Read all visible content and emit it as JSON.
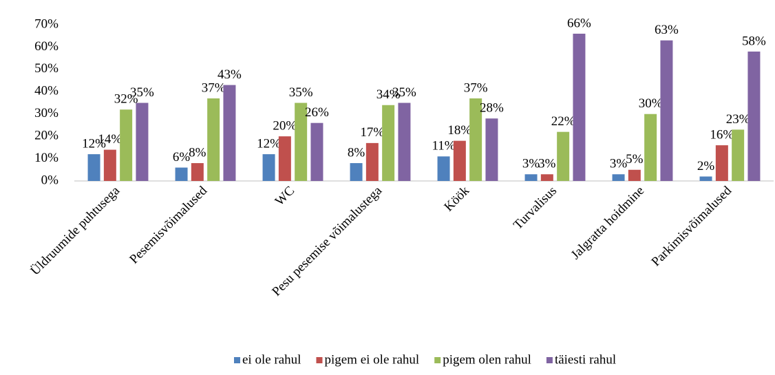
{
  "chart_data": {
    "type": "bar",
    "categories": [
      "Üldruumide puhtusega",
      "Pesemisvõimalused",
      "WC",
      "Pesu pesemise võimalustega",
      "Köök",
      "Turvalisus",
      "Jalgratta hoidmine",
      "Parkimisvõimalused"
    ],
    "series": [
      {
        "name": "ei ole rahul",
        "color": "#4f81bd",
        "values": [
          12,
          6,
          12,
          8,
          11,
          3,
          3,
          2
        ],
        "value_labels": [
          "12%",
          "6%",
          "12%",
          "8%",
          "11%",
          "3%",
          "3%",
          "2%"
        ]
      },
      {
        "name": "pigem ei ole rahul",
        "color": "#c0504d",
        "values": [
          14,
          8,
          20,
          17,
          18,
          3,
          5,
          16
        ],
        "value_labels": [
          "14%",
          "8%",
          "20%",
          "17%",
          "18%",
          "3%",
          "5%",
          "16%"
        ]
      },
      {
        "name": "pigem olen rahul",
        "color": "#9bbb59",
        "values": [
          32,
          37,
          35,
          34,
          37,
          22,
          30,
          23
        ],
        "value_labels": [
          "32%",
          "37%",
          "35%",
          "34%",
          "37%",
          "22%",
          "30%",
          "23%"
        ]
      },
      {
        "name": "täiesti rahul",
        "color": "#8064a2",
        "values": [
          35,
          43,
          26,
          35,
          28,
          66,
          63,
          58
        ],
        "value_labels": [
          "35%",
          "43%",
          "26%",
          "35%",
          "28%",
          "66%",
          "63%",
          "58%"
        ]
      }
    ],
    "ylim": [
      0,
      70
    ],
    "yticks": [
      {
        "value": 0,
        "label": "0%"
      },
      {
        "value": 10,
        "label": "10%"
      },
      {
        "value": 20,
        "label": "20%"
      },
      {
        "value": 30,
        "label": "30%"
      },
      {
        "value": 40,
        "label": "40%"
      },
      {
        "value": 50,
        "label": "50%"
      },
      {
        "value": 60,
        "label": "60%"
      },
      {
        "value": 70,
        "label": "70%"
      }
    ],
    "legend": "bottom"
  }
}
